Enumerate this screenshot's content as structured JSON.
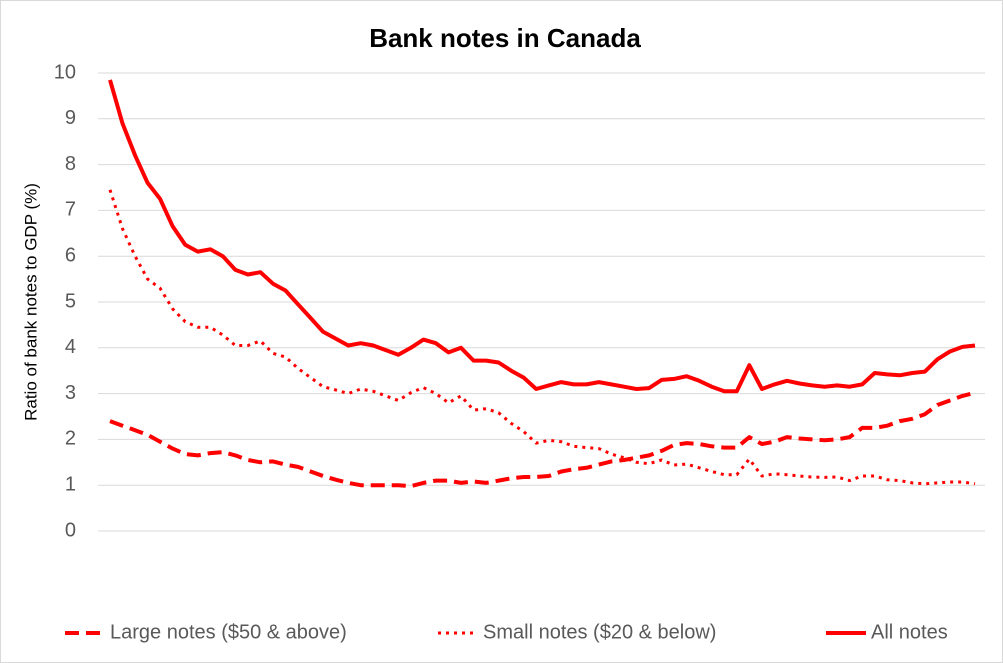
{
  "chart_data": {
    "type": "line",
    "title": "Bank notes in Canada",
    "ylabel": "Ratio of bank notes to GDP (%)",
    "categories": [
      null,
      null,
      null,
      null,
      null,
      null,
      null,
      null,
      null,
      null,
      null,
      null,
      null,
      null,
      null,
      null,
      null,
      null,
      null,
      null,
      null,
      null,
      null,
      null,
      null,
      null,
      null,
      null,
      null,
      null,
      null,
      null,
      null,
      null,
      null,
      null,
      null,
      null,
      null,
      null,
      null,
      null,
      null,
      null,
      null,
      null,
      null,
      null,
      null,
      null,
      null,
      null,
      null,
      null,
      null,
      null,
      null,
      null,
      null,
      null,
      null,
      null,
      null,
      null,
      null,
      null,
      null,
      null,
      null,
      null
    ],
    "series": [
      {
        "name": "Large notes ($50 & above)",
        "color": "#ff0000",
        "style": "dashed",
        "values": [
          2.4,
          2.3,
          2.2,
          2.1,
          1.95,
          1.8,
          1.68,
          1.65,
          1.7,
          1.72,
          1.65,
          1.55,
          1.5,
          1.52,
          1.45,
          1.4,
          1.3,
          1.2,
          1.12,
          1.05,
          1.0,
          1.0,
          1.0,
          1.0,
          0.98,
          1.05,
          1.1,
          1.1,
          1.05,
          1.08,
          1.05,
          1.1,
          1.15,
          1.18,
          1.18,
          1.2,
          1.3,
          1.35,
          1.38,
          1.45,
          1.52,
          1.55,
          1.6,
          1.65,
          1.75,
          1.88,
          1.92,
          1.9,
          1.85,
          1.82,
          1.82,
          2.05,
          1.9,
          1.95,
          2.05,
          2.02,
          2.0,
          1.98,
          2.0,
          2.05,
          2.25,
          2.25,
          2.3,
          2.4,
          2.45,
          2.55,
          2.75,
          2.85,
          2.95,
          3.02
        ]
      },
      {
        "name": "Small notes ($20 & below)",
        "color": "#ff0000",
        "style": "dotted",
        "values": [
          7.45,
          6.6,
          6.0,
          5.5,
          5.3,
          4.85,
          4.57,
          4.45,
          4.45,
          4.28,
          4.05,
          4.05,
          4.15,
          3.88,
          3.8,
          3.55,
          3.35,
          3.15,
          3.08,
          3.0,
          3.1,
          3.05,
          2.95,
          2.85,
          3.02,
          3.13,
          3.0,
          2.8,
          2.95,
          2.64,
          2.67,
          2.58,
          2.35,
          2.17,
          1.92,
          1.98,
          1.95,
          1.85,
          1.82,
          1.8,
          1.68,
          1.6,
          1.5,
          1.47,
          1.55,
          1.44,
          1.46,
          1.38,
          1.3,
          1.23,
          1.23,
          1.57,
          1.2,
          1.25,
          1.23,
          1.2,
          1.18,
          1.17,
          1.18,
          1.1,
          1.2,
          1.2,
          1.12,
          1.1,
          1.05,
          1.03,
          1.05,
          1.07,
          1.07,
          1.03
        ]
      },
      {
        "name": "All notes",
        "color": "#ff0000",
        "style": "solid",
        "values": [
          9.85,
          8.9,
          8.2,
          7.6,
          7.25,
          6.65,
          6.25,
          6.1,
          6.15,
          6.0,
          5.7,
          5.6,
          5.65,
          5.4,
          5.25,
          4.95,
          4.65,
          4.35,
          4.2,
          4.05,
          4.1,
          4.05,
          3.95,
          3.85,
          4.0,
          4.18,
          4.1,
          3.9,
          4.0,
          3.72,
          3.72,
          3.68,
          3.5,
          3.35,
          3.1,
          3.18,
          3.25,
          3.2,
          3.2,
          3.25,
          3.2,
          3.15,
          3.1,
          3.12,
          3.3,
          3.32,
          3.38,
          3.28,
          3.15,
          3.05,
          3.05,
          3.62,
          3.1,
          3.2,
          3.28,
          3.22,
          3.18,
          3.15,
          3.18,
          3.15,
          3.2,
          3.45,
          3.42,
          3.4,
          3.45,
          3.48,
          3.75,
          3.92,
          4.02,
          4.05
        ]
      }
    ],
    "ylim": [
      0,
      10
    ],
    "yticks": [
      0,
      1,
      2,
      3,
      4,
      5,
      6,
      7,
      8,
      9,
      10
    ],
    "grid": true,
    "legend": "bottom"
  }
}
